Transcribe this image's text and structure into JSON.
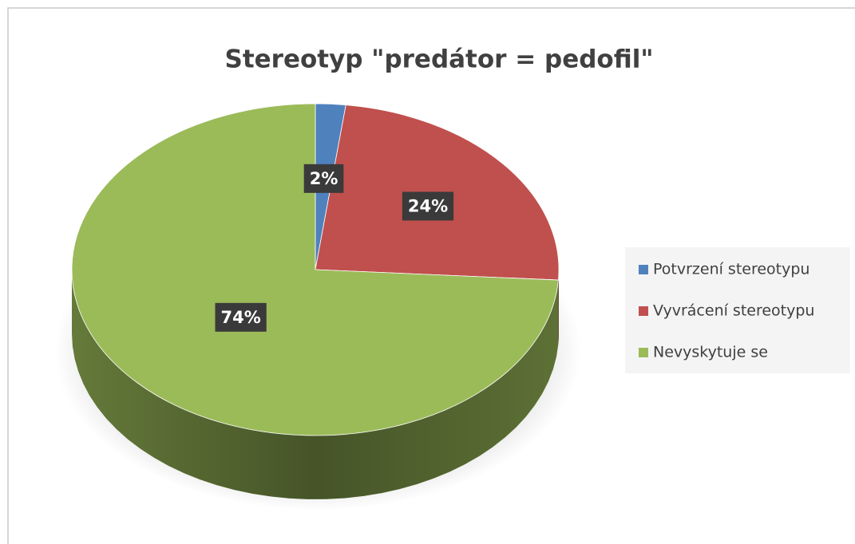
{
  "chart_data": {
    "type": "pie3d",
    "title": "Stereotyp \"predátor = pedofil\"",
    "categories": [
      "Potvrzení stereotypu",
      "Vyvrácení stereotypu",
      "Nevyskytuje se"
    ],
    "values": [
      2,
      24,
      74
    ],
    "value_labels": [
      "2%",
      "24%",
      "74%"
    ],
    "colors": [
      "#4f81bd",
      "#c0504d",
      "#9bbb59"
    ],
    "legend": "right"
  }
}
